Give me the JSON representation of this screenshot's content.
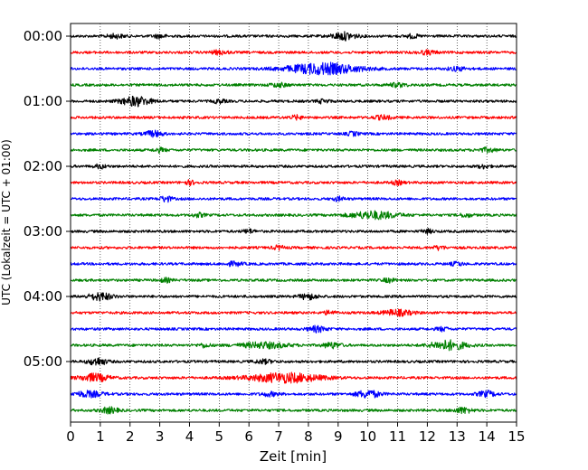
{
  "chart_data": {
    "type": "line",
    "title": "",
    "xlabel": "Zeit  [min]",
    "ylabel": "UTC (Lokalzeit = UTC + 01:00)",
    "xlim": [
      0,
      15
    ],
    "x_ticks": [
      0,
      1,
      2,
      3,
      4,
      5,
      6,
      7,
      8,
      9,
      10,
      11,
      12,
      13,
      14,
      15
    ],
    "x_tick_labels": [
      "0",
      "1",
      "2",
      "3",
      "4",
      "5",
      "6",
      "7",
      "8",
      "9",
      "10",
      "11",
      "12",
      "13",
      "14",
      "15"
    ],
    "y_ticks": [
      {
        "row": 0,
        "label": "00:00"
      },
      {
        "row": 4,
        "label": "01:00"
      },
      {
        "row": 8,
        "label": "02:00"
      },
      {
        "row": 12,
        "label": "03:00"
      },
      {
        "row": 16,
        "label": "04:00"
      },
      {
        "row": 20,
        "label": "05:00"
      }
    ],
    "grid": "vertical dotted",
    "legend": "none",
    "colors": [
      "#000000",
      "#ff0000",
      "#0000ff",
      "#008000"
    ],
    "series": [
      {
        "row": 0,
        "color": "#000000",
        "bursts": [
          [
            1.5,
            0.3,
            2
          ],
          [
            3,
            0.2,
            2
          ],
          [
            9.2,
            0.4,
            4
          ],
          [
            11.5,
            0.2,
            2
          ]
        ]
      },
      {
        "row": 1,
        "color": "#ff0000",
        "bursts": [
          [
            5,
            0.3,
            2
          ],
          [
            12,
            0.3,
            2
          ]
        ]
      },
      {
        "row": 2,
        "color": "#0000ff",
        "bursts": [
          [
            8.5,
            1.2,
            6
          ],
          [
            13,
            0.3,
            2
          ]
        ]
      },
      {
        "row": 3,
        "color": "#008000",
        "bursts": [
          [
            7,
            0.3,
            2
          ],
          [
            11,
            0.3,
            2
          ]
        ]
      },
      {
        "row": 4,
        "color": "#000000",
        "bursts": [
          [
            2.2,
            0.5,
            5
          ],
          [
            5,
            0.2,
            2
          ],
          [
            8.5,
            0.2,
            2
          ]
        ]
      },
      {
        "row": 5,
        "color": "#ff0000",
        "bursts": [
          [
            7.6,
            0.2,
            2
          ],
          [
            10.5,
            0.3,
            2
          ]
        ]
      },
      {
        "row": 6,
        "color": "#0000ff",
        "bursts": [
          [
            2.8,
            0.3,
            3
          ],
          [
            9.5,
            0.2,
            2
          ]
        ]
      },
      {
        "row": 7,
        "color": "#008000",
        "bursts": [
          [
            3,
            0.2,
            2
          ],
          [
            14,
            0.3,
            2
          ]
        ]
      },
      {
        "row": 8,
        "color": "#000000",
        "bursts": [
          [
            1,
            0.2,
            2
          ],
          [
            13.9,
            0.2,
            2
          ]
        ]
      },
      {
        "row": 9,
        "color": "#ff0000",
        "bursts": [
          [
            4,
            0.2,
            2
          ],
          [
            11,
            0.2,
            2
          ]
        ]
      },
      {
        "row": 10,
        "color": "#0000ff",
        "bursts": [
          [
            3.2,
            0.2,
            3
          ],
          [
            9,
            0.2,
            2
          ]
        ]
      },
      {
        "row": 11,
        "color": "#008000",
        "bursts": [
          [
            4.3,
            0.2,
            2
          ],
          [
            10.2,
            0.8,
            4
          ],
          [
            13.3,
            0.2,
            2
          ]
        ]
      },
      {
        "row": 12,
        "color": "#000000",
        "bursts": [
          [
            6,
            0.2,
            2
          ],
          [
            12,
            0.2,
            2
          ]
        ]
      },
      {
        "row": 13,
        "color": "#ff0000",
        "bursts": [
          [
            7,
            0.2,
            2
          ],
          [
            12.4,
            0.2,
            2
          ]
        ]
      },
      {
        "row": 14,
        "color": "#0000ff",
        "bursts": [
          [
            5.5,
            0.3,
            2
          ],
          [
            13,
            0.2,
            2
          ]
        ]
      },
      {
        "row": 15,
        "color": "#008000",
        "bursts": [
          [
            3.2,
            0.2,
            2
          ],
          [
            10.7,
            0.2,
            2
          ]
        ]
      },
      {
        "row": 16,
        "color": "#000000",
        "bursts": [
          [
            1,
            0.4,
            4
          ],
          [
            8,
            0.3,
            3
          ]
        ]
      },
      {
        "row": 17,
        "color": "#ff0000",
        "bursts": [
          [
            11,
            0.5,
            3
          ],
          [
            8.7,
            0.2,
            2
          ]
        ]
      },
      {
        "row": 18,
        "color": "#0000ff",
        "bursts": [
          [
            8.3,
            0.3,
            3
          ],
          [
            12.5,
            0.2,
            2
          ]
        ]
      },
      {
        "row": 19,
        "color": "#008000",
        "bursts": [
          [
            6.5,
            0.8,
            3
          ],
          [
            8.8,
            0.3,
            3
          ],
          [
            12.7,
            0.6,
            5
          ],
          [
            4.5,
            0.2,
            2
          ]
        ]
      },
      {
        "row": 20,
        "color": "#000000",
        "bursts": [
          [
            0.9,
            0.3,
            4
          ],
          [
            6.5,
            0.3,
            2
          ]
        ]
      },
      {
        "row": 21,
        "color": "#ff0000",
        "bursts": [
          [
            0.8,
            0.5,
            4
          ],
          [
            7.2,
            1.2,
            5
          ]
        ]
      },
      {
        "row": 22,
        "color": "#0000ff",
        "bursts": [
          [
            0.6,
            0.5,
            3
          ],
          [
            6.7,
            0.3,
            2
          ],
          [
            10,
            0.4,
            4
          ],
          [
            14,
            0.3,
            3
          ]
        ]
      },
      {
        "row": 23,
        "color": "#008000",
        "bursts": [
          [
            1.3,
            0.3,
            3
          ],
          [
            13.2,
            0.3,
            3
          ]
        ]
      }
    ]
  }
}
